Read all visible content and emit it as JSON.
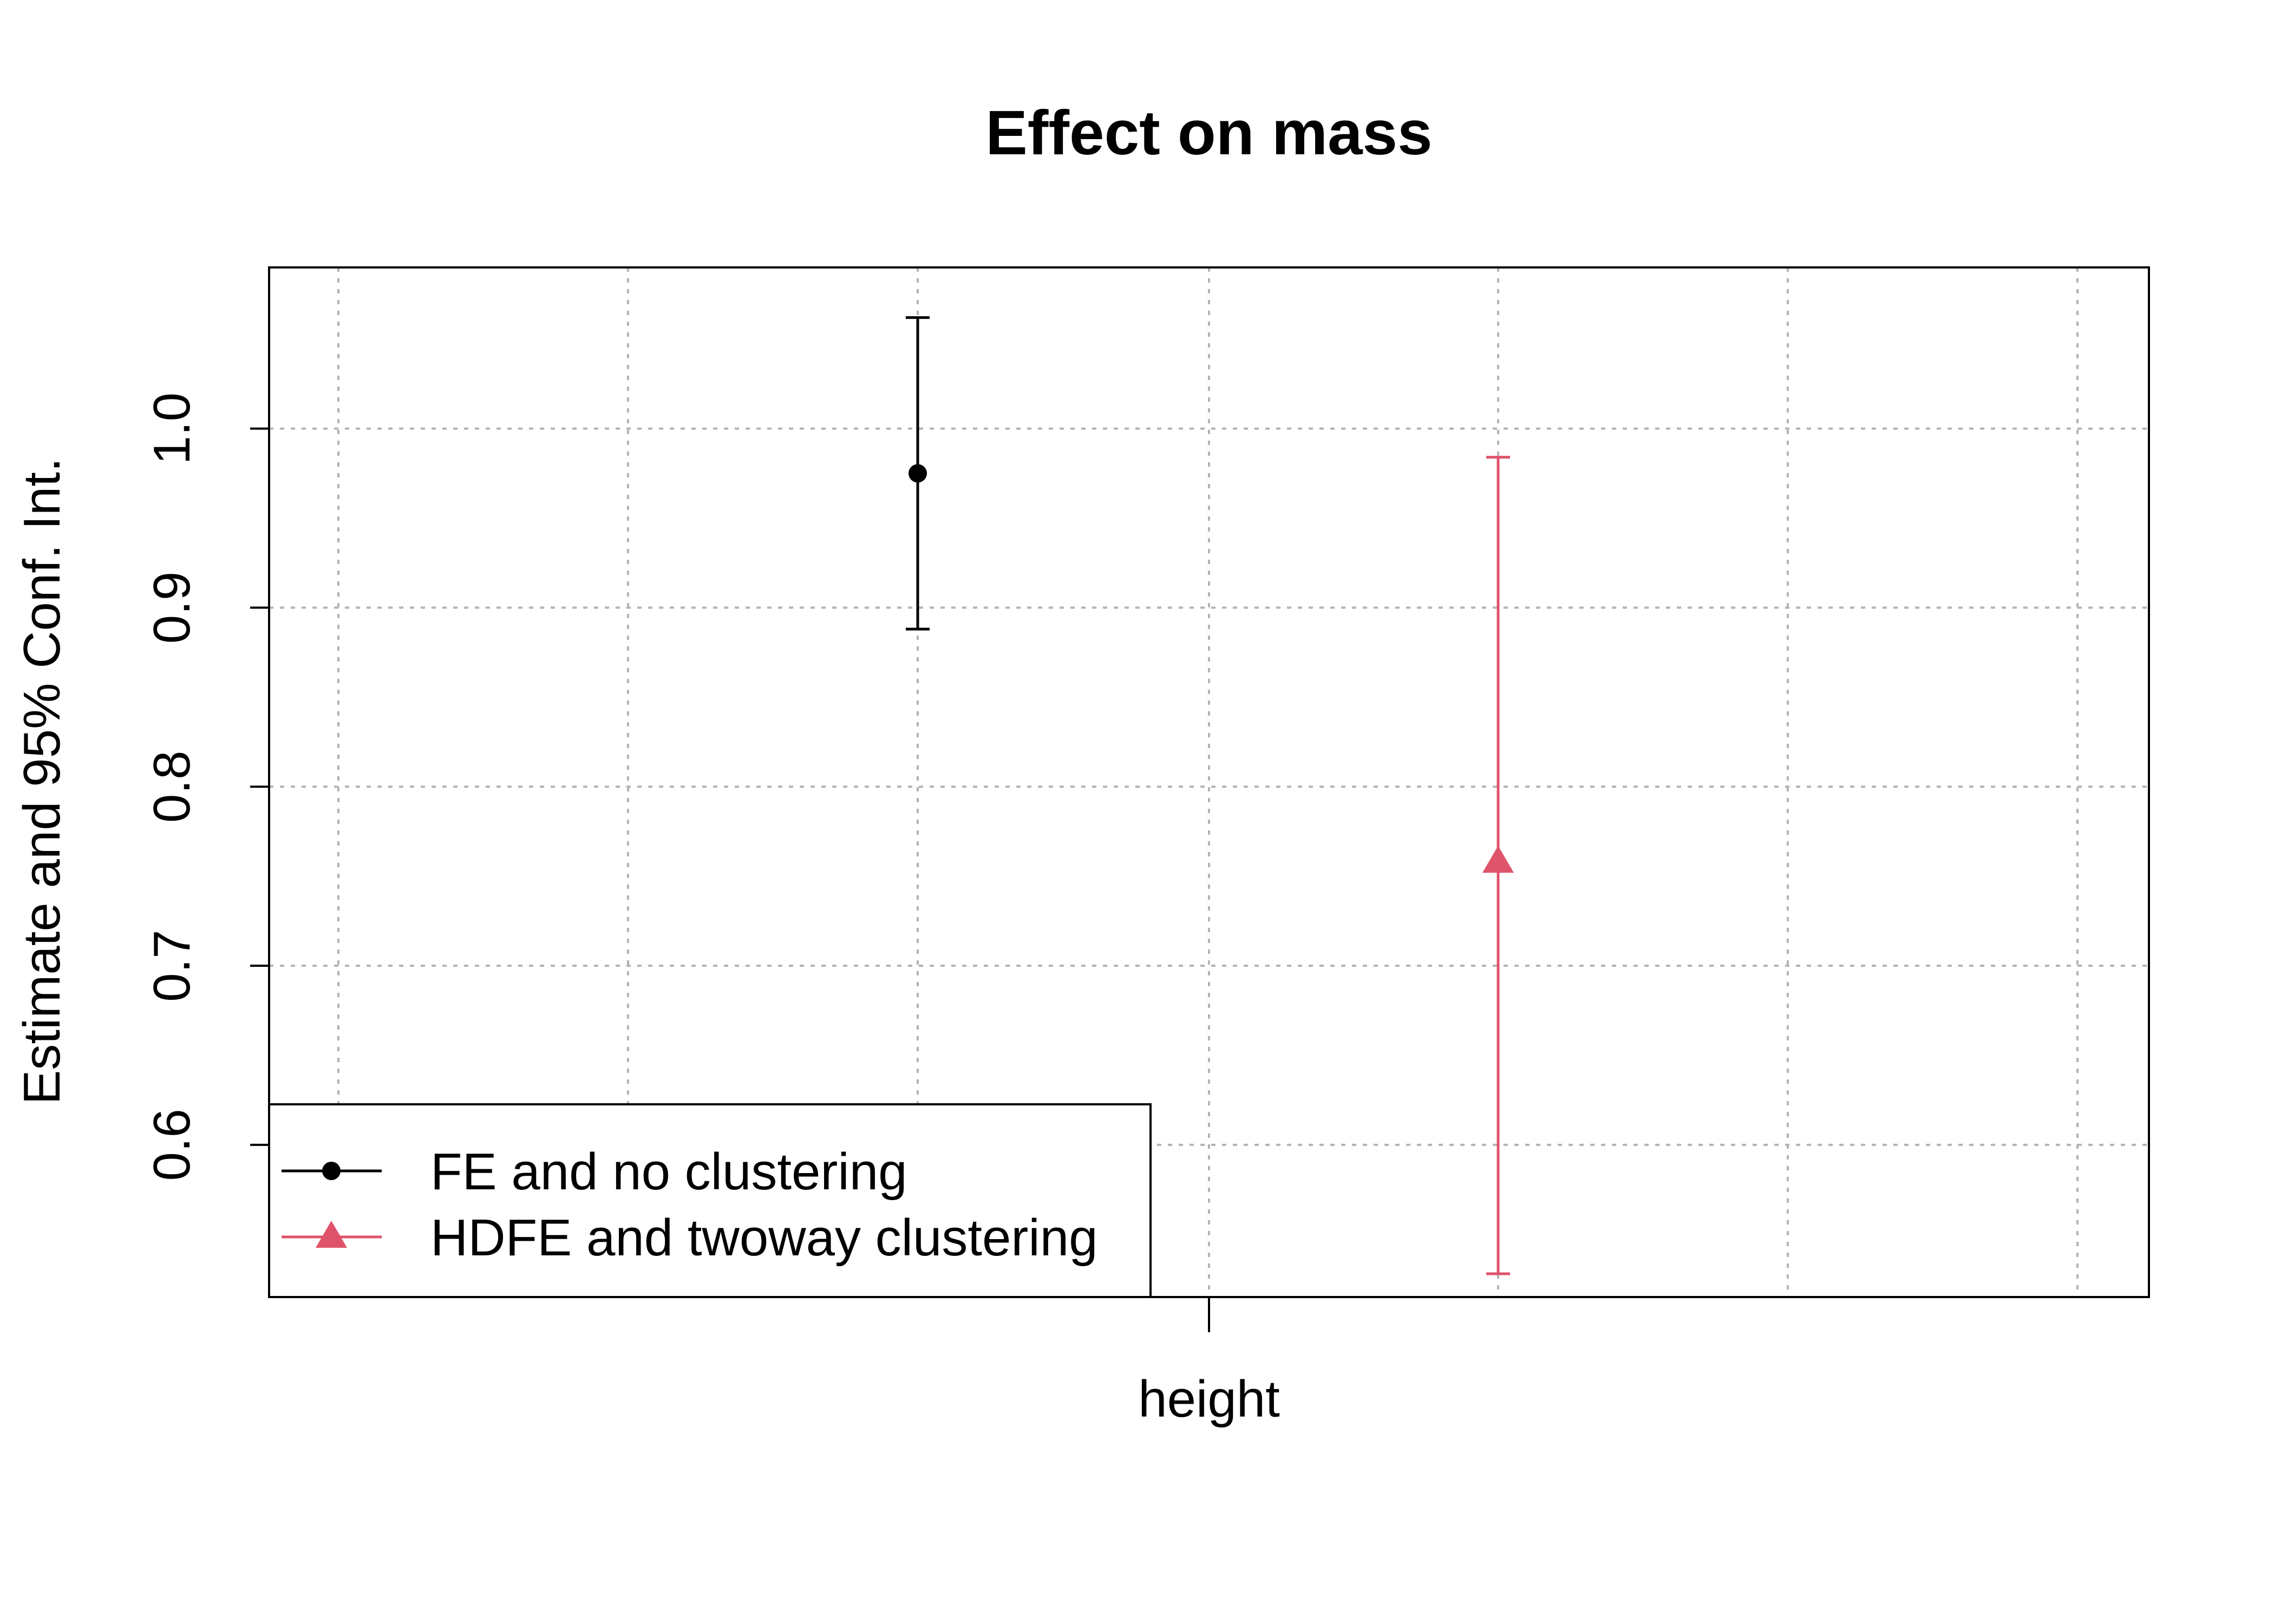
{
  "chart_data": {
    "type": "scatter",
    "title": "Effect on mass",
    "xlabel": "",
    "ylabel": "Estimate and 95% Conf. Int.",
    "categories": [
      "height"
    ],
    "yticks": [
      "0.6",
      "0.7",
      "0.8",
      "0.9",
      "1.0"
    ],
    "ylim": [
      0.515,
      1.09
    ],
    "grid": true,
    "legend_position": "bottom-left",
    "series": [
      {
        "name": "FE and no clustering",
        "color": "#000000",
        "marker": "circle",
        "estimate": 0.975,
        "ci_low": 0.888,
        "ci_high": 1.062
      },
      {
        "name": "HDFE and twoway clustering",
        "color": "#DF536B",
        "marker": "triangle",
        "estimate": 0.758,
        "ci_low": 0.528,
        "ci_high": 0.984
      }
    ]
  }
}
